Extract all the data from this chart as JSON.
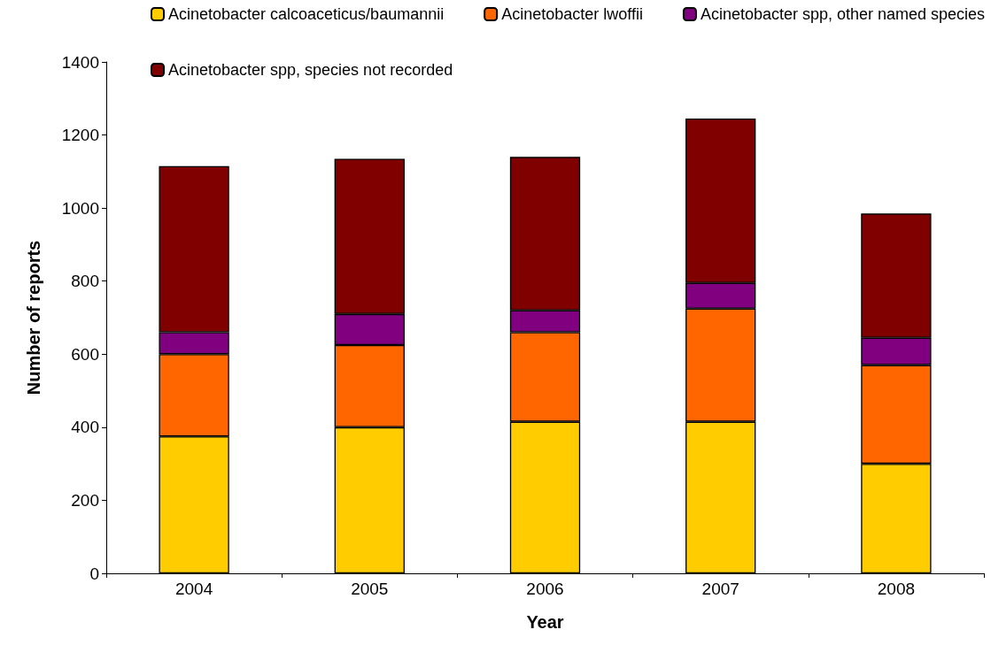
{
  "chart_data": {
    "type": "bar",
    "stacked": true,
    "xlabel": "Year",
    "ylabel": "Number of reports",
    "categories": [
      "2004",
      "2005",
      "2006",
      "2007",
      "2008"
    ],
    "series": [
      {
        "name": "Acinetobacter calcoaceticus/baumannii",
        "color": "#ffcc00",
        "values": [
          375,
          400,
          415,
          415,
          300
        ]
      },
      {
        "name": "Acinetobacter lwoffii",
        "color": "#ff6600",
        "values": [
          225,
          225,
          245,
          310,
          270
        ]
      },
      {
        "name": "Acinetobacter spp, other named species",
        "color": "#800080",
        "values": [
          60,
          85,
          60,
          70,
          75
        ]
      },
      {
        "name": "Acinetobacter spp, species not recorded",
        "color": "#800000",
        "values": [
          455,
          425,
          420,
          450,
          340
        ]
      }
    ],
    "ylim": [
      0,
      1400
    ],
    "yticks": [
      0,
      200,
      400,
      600,
      800,
      1000,
      1200,
      1400
    ],
    "grid": false,
    "legend": "top"
  }
}
